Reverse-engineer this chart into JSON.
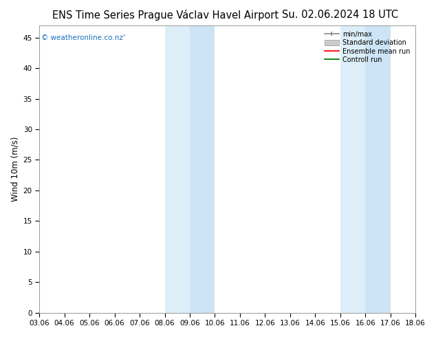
{
  "title_left": "ENS Time Series Prague Václav Havel Airport",
  "title_right": "Su. 02.06.2024 18 UTC",
  "ylabel": "Wind 10m (m/s)",
  "watermark": "© weatheronline.co.nz'",
  "x_ticks": [
    "03.06",
    "04.06",
    "05.06",
    "06.06",
    "07.06",
    "08.06",
    "09.06",
    "10.06",
    "11.06",
    "12.06",
    "13.06",
    "14.06",
    "15.06",
    "16.06",
    "17.06",
    "18.06"
  ],
  "x_values": [
    0,
    1,
    2,
    3,
    4,
    5,
    6,
    7,
    8,
    9,
    10,
    11,
    12,
    13,
    14,
    15
  ],
  "ylim": [
    0,
    47
  ],
  "yticks": [
    0,
    5,
    10,
    15,
    20,
    25,
    30,
    35,
    40,
    45
  ],
  "shaded_regions": [
    {
      "xmin": 5.0,
      "xmax": 6.0,
      "color": "#ddeef8"
    },
    {
      "xmin": 6.0,
      "xmax": 7.0,
      "color": "#cce4f5"
    },
    {
      "xmin": 12.0,
      "xmax": 13.0,
      "color": "#ddeef8"
    },
    {
      "xmin": 13.0,
      "xmax": 14.0,
      "color": "#cce4f5"
    }
  ],
  "legend_items": [
    {
      "label": "min/max",
      "color": "#999999",
      "style": "minmax"
    },
    {
      "label": "Standard deviation",
      "color": "#cccccc",
      "style": "stddev"
    },
    {
      "label": "Ensemble mean run",
      "color": "red",
      "style": "line"
    },
    {
      "label": "Controll run",
      "color": "green",
      "style": "line"
    }
  ],
  "bg_color": "#ffffff",
  "plot_bg_color": "#ffffff",
  "title_fontsize": 10.5,
  "axis_fontsize": 8.5,
  "tick_fontsize": 7.5,
  "watermark_color": "#1a6ebd",
  "watermark_fontsize": 7.5
}
